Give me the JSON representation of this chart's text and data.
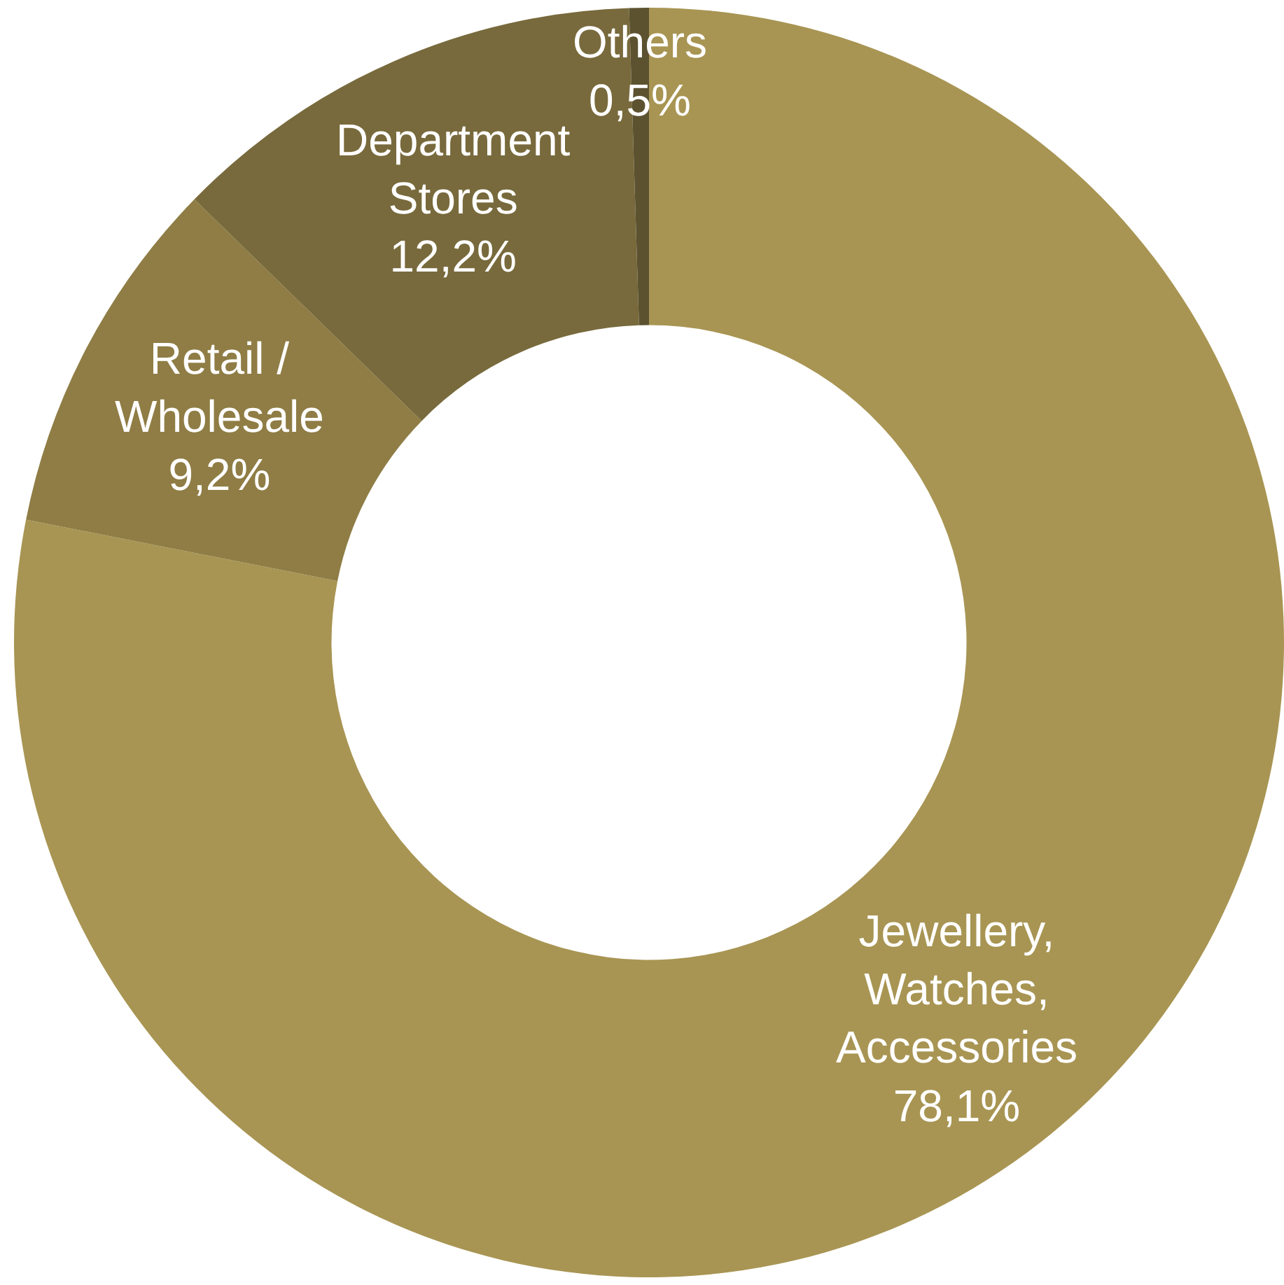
{
  "chart_data": {
    "type": "donut",
    "categories": [
      "Jewellery, Watches, Accessories",
      "Retail / Wholesale",
      "Department Stores",
      "Others"
    ],
    "values": [
      78.1,
      9.2,
      12.2,
      0.5
    ],
    "value_labels": [
      "78,1%",
      "9,2%",
      "12,2%",
      "0,5%"
    ],
    "colors": [
      "#a89553",
      "#8f7d45",
      "#786a3c",
      "#5c5230"
    ],
    "legend": false
  }
}
